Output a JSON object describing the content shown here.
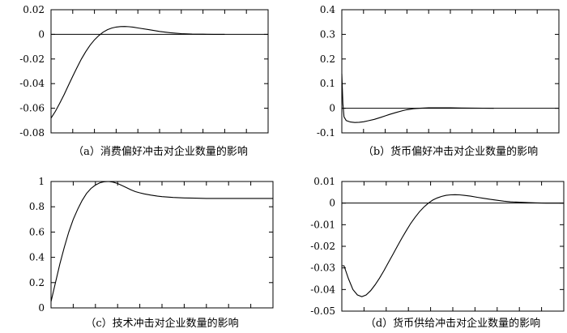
{
  "chart_data": [
    {
      "type": "line",
      "title": "",
      "caption": "（a）消费偏好冲击对企业数量的影响",
      "xlabel": "",
      "ylabel": "",
      "xlim": [
        0,
        100
      ],
      "ylim": [
        -0.08,
        0.02
      ],
      "yticks": [
        "0.02",
        "0",
        "-0.02",
        "-0.04",
        "-0.06",
        "-0.08"
      ],
      "ytick_values": [
        0.02,
        0,
        -0.02,
        -0.04,
        -0.06,
        -0.08
      ],
      "xtick_count": 11,
      "zero_line": true,
      "grid": false,
      "series": [
        {
          "x": [
            0,
            2,
            4,
            6,
            8,
            10,
            12,
            14,
            16,
            18,
            20,
            22,
            24,
            26,
            28,
            30,
            32,
            34,
            36,
            38,
            40,
            45,
            50,
            55,
            60,
            65,
            70,
            75,
            80
          ],
          "y": [
            -0.068,
            -0.0625,
            -0.056,
            -0.049,
            -0.0415,
            -0.034,
            -0.0268,
            -0.02,
            -0.014,
            -0.0088,
            -0.0045,
            -0.001,
            0.0018,
            0.0038,
            0.0051,
            0.0059,
            0.0063,
            0.0064,
            0.0062,
            0.0058,
            0.0052,
            0.0038,
            0.0024,
            0.0013,
            0.0006,
            0.0002,
            0.0001,
            0.0,
            0.0
          ]
        }
      ]
    },
    {
      "type": "line",
      "title": "",
      "caption": "（b）货币偏好冲击对企业数量的影响",
      "xlabel": "",
      "ylabel": "",
      "xlim": [
        0,
        100
      ],
      "ylim": [
        -0.1,
        0.4
      ],
      "yticks": [
        "0.4",
        "0.3",
        "0.2",
        "0.1",
        "0",
        "-0.1"
      ],
      "ytick_values": [
        0.4,
        0.3,
        0.2,
        0.1,
        0,
        -0.1
      ],
      "xtick_count": 11,
      "zero_line": true,
      "grid": false,
      "series": [
        {
          "x": [
            0,
            0.5,
            1,
            2,
            4,
            6,
            8,
            10,
            12,
            15,
            18,
            20,
            22,
            25,
            28,
            30,
            33,
            36,
            40,
            45,
            50,
            55,
            60,
            65,
            70
          ],
          "y": [
            0.14,
            0.02,
            -0.035,
            -0.05,
            -0.056,
            -0.058,
            -0.057,
            -0.055,
            -0.051,
            -0.045,
            -0.037,
            -0.031,
            -0.025,
            -0.017,
            -0.01,
            -0.006,
            -0.002,
            0.0,
            0.0015,
            0.002,
            0.0015,
            0.001,
            0.0005,
            0.0002,
            0.0
          ]
        }
      ]
    },
    {
      "type": "line",
      "title": "",
      "caption": "（c）技术冲击对企业数量的影响",
      "xlabel": "",
      "ylabel": "",
      "xlim": [
        0,
        100
      ],
      "ylim": [
        0,
        1
      ],
      "yticks": [
        "1",
        "0.8",
        "0.6",
        "0.4",
        "0.2",
        "0"
      ],
      "ytick_values": [
        1,
        0.8,
        0.6,
        0.4,
        0.2,
        0
      ],
      "xtick_count": 11,
      "zero_line": false,
      "grid": false,
      "series": [
        {
          "x": [
            0,
            2,
            4,
            6,
            8,
            10,
            12,
            14,
            16,
            18,
            20,
            22,
            24,
            26,
            28,
            30,
            32,
            34,
            36,
            38,
            40,
            42,
            45,
            48,
            50,
            55,
            60,
            65,
            70,
            75,
            80,
            90,
            100
          ],
          "y": [
            0.05,
            0.2,
            0.35,
            0.48,
            0.6,
            0.7,
            0.78,
            0.85,
            0.905,
            0.945,
            0.972,
            0.99,
            0.998,
            1.0,
            0.995,
            0.984,
            0.968,
            0.951,
            0.934,
            0.92,
            0.91,
            0.902,
            0.892,
            0.884,
            0.88,
            0.874,
            0.87,
            0.868,
            0.866,
            0.866,
            0.866,
            0.866,
            0.866
          ]
        }
      ]
    },
    {
      "type": "line",
      "title": "",
      "caption": "（d）货币供给冲击对企业数量的影响",
      "xlabel": "",
      "ylabel": "",
      "xlim": [
        0,
        100
      ],
      "ylim": [
        -0.05,
        0.01
      ],
      "yticks": [
        "0.01",
        "0",
        "-0.01",
        "-0.02",
        "-0.03",
        "-0.04",
        "-0.05"
      ],
      "ytick_values": [
        0.01,
        0,
        -0.01,
        -0.02,
        -0.03,
        -0.04,
        -0.05
      ],
      "xtick_count": 11,
      "zero_line": true,
      "grid": false,
      "series": [
        {
          "x": [
            0,
            1,
            3,
            5,
            7,
            9,
            11,
            13,
            15,
            17,
            19,
            21,
            23,
            25,
            27,
            29,
            31,
            33,
            35,
            37,
            39,
            41,
            43,
            45,
            47,
            49,
            51,
            53,
            55,
            58,
            61,
            64,
            67,
            70,
            73,
            76,
            80,
            84,
            88,
            92,
            96,
            100
          ],
          "y": [
            -0.029,
            -0.029,
            -0.035,
            -0.04,
            -0.0425,
            -0.0433,
            -0.0425,
            -0.0405,
            -0.0378,
            -0.0347,
            -0.0312,
            -0.0275,
            -0.0238,
            -0.02,
            -0.0163,
            -0.0128,
            -0.0095,
            -0.0066,
            -0.004,
            -0.0018,
            0.0,
            0.0014,
            0.0024,
            0.0031,
            0.0036,
            0.0038,
            0.0039,
            0.0038,
            0.0036,
            0.0032,
            0.0027,
            0.0022,
            0.0017,
            0.0013,
            0.0009,
            0.0006,
            0.0004,
            0.0002,
            0.0001,
            0.0,
            0.0,
            0.0
          ]
        }
      ]
    }
  ]
}
